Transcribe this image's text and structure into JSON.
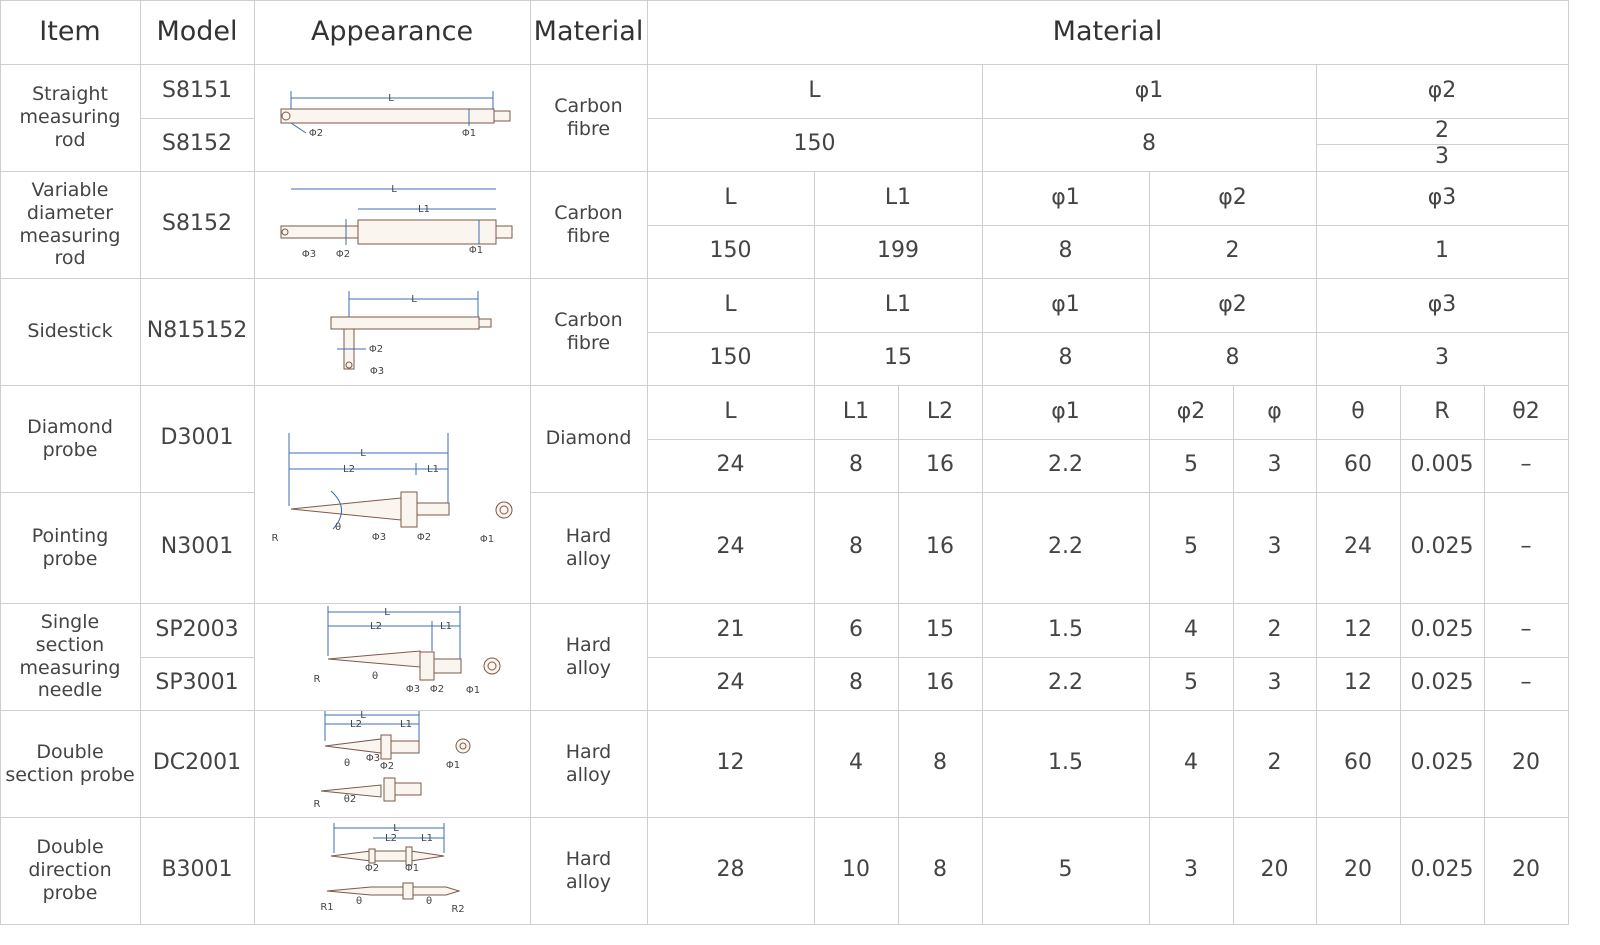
{
  "header": [
    "Item",
    "Model",
    "Appearance",
    "Material",
    "Material"
  ],
  "rows": [
    {
      "item": "Straight measuring rod",
      "models": [
        "S8151",
        "S8152"
      ],
      "material": "Carbon fibre",
      "params": [
        "L",
        "φ1",
        "φ2"
      ],
      "values": [
        [
          150,
          8,
          [
            2,
            3
          ]
        ]
      ],
      "drawing": [
        "L",
        "Φ2",
        "Φ1"
      ]
    },
    {
      "item": "Variable diameter measuring rod",
      "models": [
        "S8152"
      ],
      "material": "Carbon fibre",
      "params": [
        "L",
        "L1",
        "φ1",
        "φ2",
        "φ3"
      ],
      "values": [
        [
          150,
          199,
          8,
          2,
          1
        ]
      ],
      "drawing": [
        "L",
        "L1",
        "Φ3",
        "Φ2",
        "Φ1"
      ]
    },
    {
      "item": "Sidestick",
      "models": [
        "N815152"
      ],
      "material": "Carbon fibre",
      "params": [
        "L",
        "L1",
        "φ1",
        "φ2",
        "φ3"
      ],
      "values": [
        [
          150,
          15,
          8,
          8,
          3
        ]
      ],
      "drawing": [
        "L",
        "Φ2",
        "Φ3"
      ]
    },
    {
      "item": "Diamond probe",
      "models": [
        "D3001"
      ],
      "material": "Diamond",
      "params": [
        "L",
        "L1",
        "L2",
        "φ1",
        "φ2",
        "φ",
        "θ",
        "R",
        "θ2"
      ],
      "values": [
        [
          24,
          8,
          16,
          2.2,
          5,
          3,
          60,
          0.005,
          "–"
        ]
      ],
      "drawing": [
        "L",
        "L2",
        "L1",
        "R",
        "θ",
        "Φ3",
        "Φ2",
        "Φ1"
      ]
    },
    {
      "item": "Pointing probe",
      "models": [
        "N3001"
      ],
      "material": "Hard alloy",
      "values": [
        [
          24,
          8,
          16,
          2.2,
          5,
          3,
          24,
          0.025,
          "–"
        ]
      ]
    },
    {
      "item": "Single section measuring needle",
      "models": [
        "SP2003",
        "SP3001"
      ],
      "material": "Hard alloy",
      "values": [
        [
          21,
          6,
          15,
          1.5,
          4,
          2,
          12,
          0.025,
          "–"
        ],
        [
          24,
          8,
          16,
          2.2,
          5,
          3,
          12,
          0.025,
          "–"
        ]
      ],
      "drawing": [
        "L",
        "L2",
        "L1",
        "R",
        "θ",
        "Φ3",
        "Φ2",
        "Φ1"
      ]
    },
    {
      "item": "Double section probe",
      "models": [
        "DC2001"
      ],
      "material": "Hard alloy",
      "values": [
        [
          12,
          4,
          8,
          1.5,
          4,
          2,
          60,
          0.025,
          20
        ]
      ],
      "drawing": [
        "L",
        "L2",
        "L1",
        "θ",
        "Φ3",
        "Φ2",
        "Φ1",
        "R",
        "θ2"
      ]
    },
    {
      "item": "Double direction probe",
      "models": [
        "B3001"
      ],
      "material": "Hard alloy",
      "values": [
        [
          28,
          10,
          8,
          5,
          3,
          20,
          20,
          0.025,
          20
        ]
      ],
      "drawing": [
        "L",
        "L2",
        "L1",
        "Φ2",
        "Φ1",
        "R1",
        "θ",
        "θ",
        "R2"
      ]
    }
  ]
}
